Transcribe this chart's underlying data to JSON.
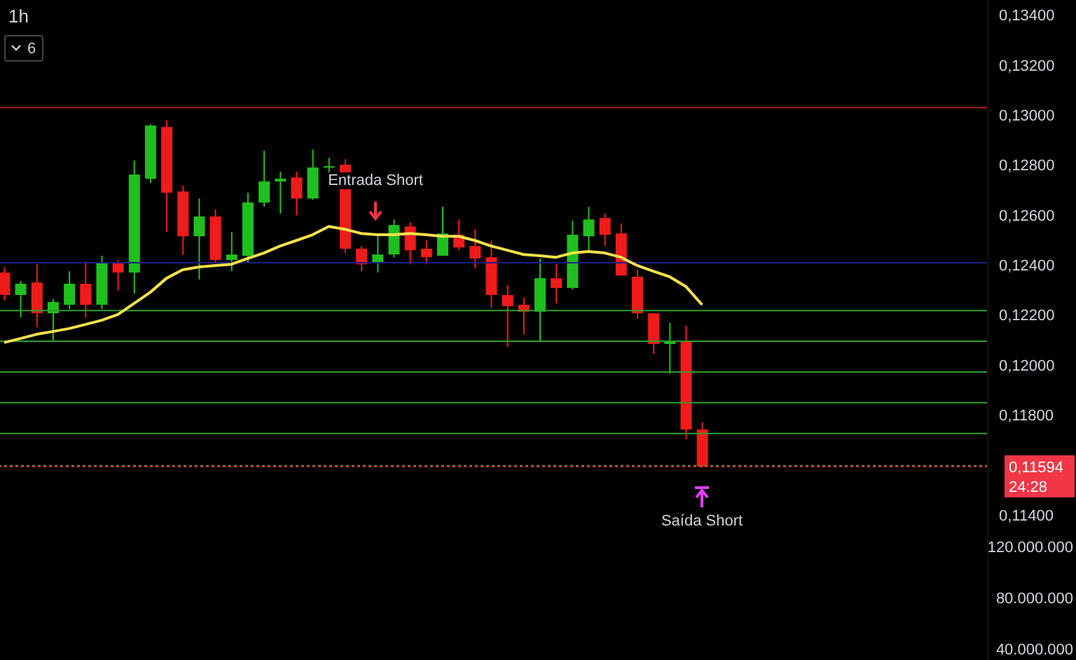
{
  "chart_data": {
    "type": "candlestick",
    "title": "1h",
    "categories": [
      null,
      null,
      null,
      null,
      null,
      null,
      null,
      null,
      null,
      null,
      null,
      null,
      null,
      null,
      null,
      null,
      null,
      null,
      null,
      null,
      null,
      null,
      null,
      null,
      null,
      null,
      null,
      null,
      null,
      null,
      null,
      null,
      null,
      null,
      null,
      null,
      null,
      null,
      null,
      null,
      null,
      null,
      null,
      null
    ],
    "series": [
      {
        "type": "candlestick",
        "ohlc": [
          [
            0.1237,
            0.12392,
            0.12258,
            0.1228
          ],
          [
            0.1228,
            0.12336,
            0.1219,
            0.12325
          ],
          [
            0.1233,
            0.12403,
            0.12151,
            0.12207
          ],
          [
            0.12207,
            0.12263,
            0.12095,
            0.12252
          ],
          [
            0.12241,
            0.12375,
            0.12224,
            0.12325
          ],
          [
            0.12325,
            0.12414,
            0.1219,
            0.12241
          ],
          [
            0.12241,
            0.12437,
            0.12224,
            0.12409
          ],
          [
            0.12409,
            0.1242,
            0.12297,
            0.1237
          ],
          [
            0.1237,
            0.12818,
            0.12286,
            0.12762
          ],
          [
            0.12745,
            0.12963,
            0.12728,
            0.12958
          ],
          [
            0.12952,
            0.1298,
            0.12532,
            0.12689
          ],
          [
            0.12694,
            0.12717,
            0.12442,
            0.12515
          ],
          [
            0.12515,
            0.12666,
            0.12342,
            0.12594
          ],
          [
            0.12594,
            0.12622,
            0.12409,
            0.1242
          ],
          [
            0.1242,
            0.12532,
            0.12375,
            0.12442
          ],
          [
            0.12437,
            0.12689,
            0.12409,
            0.1265
          ],
          [
            0.1265,
            0.12857,
            0.12633,
            0.12734
          ],
          [
            0.12734,
            0.12773,
            0.12605,
            0.12745
          ],
          [
            0.1275,
            0.12773,
            0.12599,
            0.12666
          ],
          [
            0.12666,
            0.12862,
            0.12661,
            0.1279
          ],
          [
            0.1279,
            0.12829,
            0.12767,
            0.12795
          ],
          [
            0.12801,
            0.12823,
            0.12448,
            0.12465
          ],
          [
            0.12465,
            0.12476,
            0.12375,
            0.12403
          ],
          [
            0.12409,
            0.12521,
            0.1237,
            0.12442
          ],
          [
            0.12442,
            0.12582,
            0.12431,
            0.1256
          ],
          [
            0.12554,
            0.12571,
            0.12403,
            0.12459
          ],
          [
            0.12465,
            0.12498,
            0.12403,
            0.12431
          ],
          [
            0.12437,
            0.12633,
            0.12437,
            0.12526
          ],
          [
            0.12521,
            0.12582,
            0.12459,
            0.1247
          ],
          [
            0.12476,
            0.12543,
            0.12386,
            0.12426
          ],
          [
            0.12431,
            0.12498,
            0.1223,
            0.1228
          ],
          [
            0.1228,
            0.12319,
            0.12073,
            0.12235
          ],
          [
            0.12241,
            0.12269,
            0.12123,
            0.12213
          ],
          [
            0.12213,
            0.12426,
            0.12095,
            0.12347
          ],
          [
            0.12347,
            0.12403,
            0.12246,
            0.12308
          ],
          [
            0.12308,
            0.12577,
            0.12302,
            0.12521
          ],
          [
            0.12515,
            0.12633,
            0.12454,
            0.12582
          ],
          [
            0.12588,
            0.12605,
            0.12476,
            0.12521
          ],
          [
            0.12526,
            0.12566,
            0.12358,
            0.12358
          ],
          [
            0.12353,
            0.12381,
            0.12185,
            0.12207
          ],
          [
            0.12207,
            0.12207,
            0.12045,
            0.12084
          ],
          [
            0.12084,
            0.12168,
            0.11966,
            0.12095
          ],
          [
            0.12095,
            0.12157,
            0.11703,
            0.11742
          ],
          [
            0.11742,
            0.1177,
            0.1159,
            0.11594
          ]
        ],
        "colors": [
          "#f01b1b",
          "#1fbf1f",
          "#f01b1b",
          "#1fbf1f",
          "#1fbf1f",
          "#f01b1b",
          "#1fbf1f",
          "#f01b1b",
          "#1fbf1f",
          "#1fbf1f",
          "#f01b1b",
          "#f01b1b",
          "#1fbf1f",
          "#f01b1b",
          "#1fbf1f",
          "#1fbf1f",
          "#1fbf1f",
          "#1fbf1f",
          "#f01b1b",
          "#1fbf1f",
          "#1fbf1f",
          "#f01b1b",
          "#f01b1b",
          "#1fbf1f",
          "#1fbf1f",
          "#f01b1b",
          "#f01b1b",
          "#1fbf1f",
          "#f01b1b",
          "#f01b1b",
          "#f01b1b",
          "#f01b1b",
          "#f01b1b",
          "#1fbf1f",
          "#f01b1b",
          "#1fbf1f",
          "#1fbf1f",
          "#f01b1b",
          "#f01b1b",
          "#f01b1b",
          "#f01b1b",
          "#1fbf1f",
          "#f01b1b",
          "#f01b1b"
        ]
      },
      {
        "type": "line",
        "color": "#f5e14a",
        "values": [
          0.1209,
          0.12106,
          0.12123,
          0.12134,
          0.12146,
          0.12162,
          0.12179,
          0.12202,
          0.12246,
          0.12291,
          0.12347,
          0.12381,
          0.12392,
          0.12398,
          0.12403,
          0.12426,
          0.12448,
          0.12476,
          0.12498,
          0.12521,
          0.12554,
          0.12543,
          0.12526,
          0.12521,
          0.12521,
          0.12526,
          0.12521,
          0.12515,
          0.12515,
          0.12498,
          0.12476,
          0.12459,
          0.12442,
          0.12437,
          0.12431,
          0.12448,
          0.12454,
          0.12448,
          0.12431,
          0.12398,
          0.12375,
          0.12353,
          0.12314,
          0.12241
        ]
      }
    ],
    "ylim": [
      0.1082,
      0.1346
    ],
    "yticks": [
      {
        "value": 0.134,
        "label": "0,13400"
      },
      {
        "value": 0.132,
        "label": "0,13200"
      },
      {
        "value": 0.13,
        "label": "0,13000"
      },
      {
        "value": 0.128,
        "label": "0,12800"
      },
      {
        "value": 0.126,
        "label": "0,12600"
      },
      {
        "value": 0.124,
        "label": "0,12400"
      },
      {
        "value": 0.122,
        "label": "0,12200"
      },
      {
        "value": 0.12,
        "label": "0,12000"
      },
      {
        "value": 0.118,
        "label": "0,11800"
      },
      {
        "value": 0.114,
        "label": "0,11400"
      }
    ],
    "y2lim": [
      31000000,
      547000000
    ],
    "y2ticks": [
      {
        "value": 120000000,
        "label": "120.000.000"
      },
      {
        "value": 80000000,
        "label": "80.000.000"
      },
      {
        "value": 40000000,
        "label": "40.000.000"
      }
    ],
    "tick_labels": "y",
    "ref_lines": [
      {
        "axis": "y",
        "value": 0.1303,
        "color": "#a82020"
      },
      {
        "axis": "y",
        "value": 0.12409,
        "color": "#1c1c8a"
      },
      {
        "axis": "y",
        "value": 0.12218,
        "color": "#2e9e2e"
      },
      {
        "axis": "y",
        "value": 0.12095,
        "color": "#2e9e2e"
      },
      {
        "axis": "y",
        "value": 0.11972,
        "color": "#2e9e2e"
      },
      {
        "axis": "y",
        "value": 0.11849,
        "color": "#2e9e2e"
      },
      {
        "axis": "y",
        "value": 0.11726,
        "color": "#2e9e2e"
      },
      {
        "axis": "y",
        "value": 0.11597,
        "color": "#2e9e2e",
        "line_style": "dotted"
      },
      {
        "axis": "y",
        "value": 0.11594,
        "label": "0,11594",
        "color": "#f23645",
        "line_style": "dotted"
      }
    ],
    "annotations": [
      "6",
      "24:28",
      "Entrada Short",
      "Saída Short"
    ]
  }
}
